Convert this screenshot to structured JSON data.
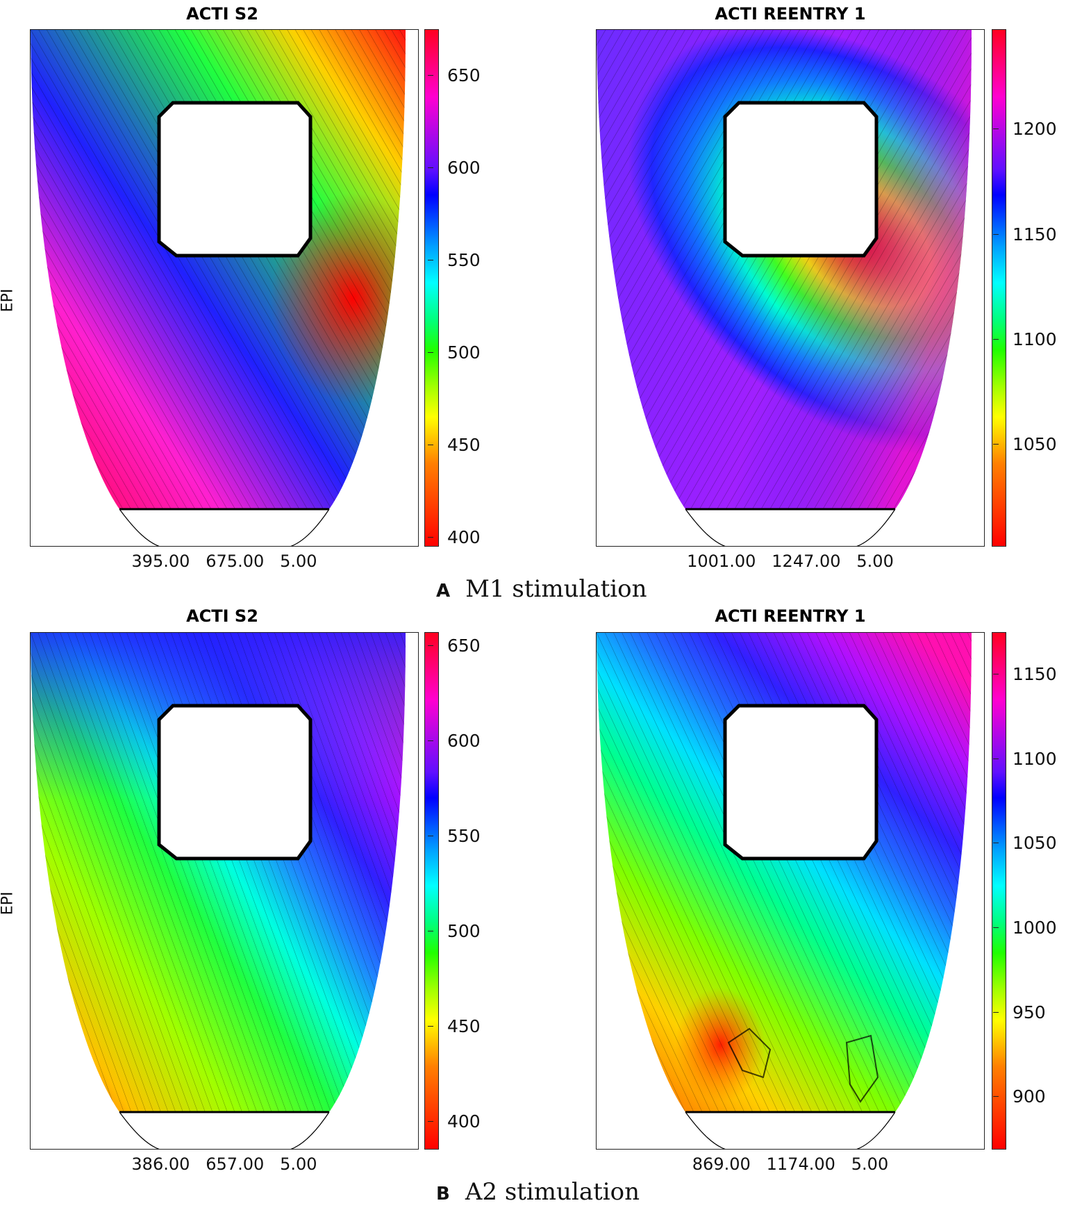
{
  "captions": {
    "a": {
      "letter": "A",
      "text": "M1 stimulation"
    },
    "b": {
      "letter": "B",
      "text": "A2 stimulation"
    }
  },
  "y_label": "EPI",
  "chart_data": [
    {
      "type": "heatmap",
      "panel": "A-left",
      "title": "ACTI S2",
      "ylabel": "EPI",
      "xlabel": "395.00   675.00   5.00",
      "colorbar_ticks": [
        650,
        600,
        550,
        500,
        450,
        400
      ],
      "colorbar_range": [
        395,
        675
      ],
      "colormap": "hsv (red low, yellow, green, cyan, blue, magenta, red high)"
    },
    {
      "type": "heatmap",
      "panel": "A-right",
      "title": "ACTI REENTRY 1",
      "ylabel": "",
      "xlabel": "1001.00   1247.00   5.00",
      "colorbar_ticks": [
        1200,
        1150,
        1100,
        1050
      ],
      "colorbar_range": [
        1001,
        1247
      ],
      "colormap": "hsv"
    },
    {
      "type": "heatmap",
      "panel": "B-left",
      "title": "ACTI S2",
      "ylabel": "EPI",
      "xlabel": "386.00   657.00   5.00",
      "colorbar_ticks": [
        650,
        600,
        550,
        500,
        450,
        400
      ],
      "colorbar_range": [
        386,
        657
      ],
      "colormap": "hsv"
    },
    {
      "type": "heatmap",
      "panel": "B-right",
      "title": "ACTI REENTRY 1",
      "ylabel": "",
      "xlabel": "869.00   1174.00   5.00",
      "colorbar_ticks": [
        1150,
        1100,
        1050,
        1000,
        950,
        900
      ],
      "colorbar_range": [
        869,
        1174
      ],
      "colormap": "hsv"
    }
  ]
}
